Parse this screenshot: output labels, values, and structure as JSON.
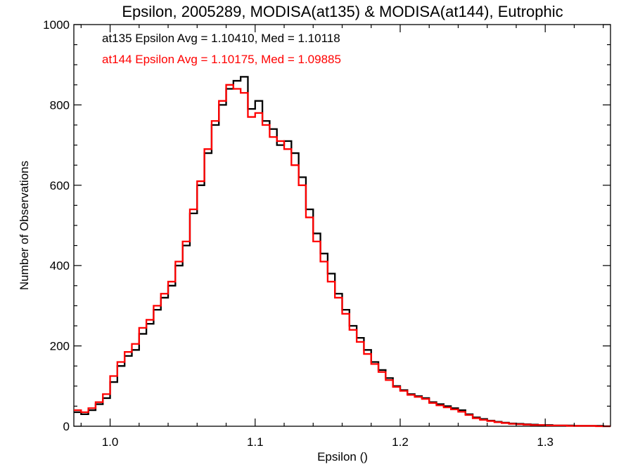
{
  "chart_data": {
    "type": "line",
    "step": true,
    "title": "Epsilon, 2005289, MODISA(at135) & MODISA(at144), Eutrophic",
    "xlabel": "Epsilon ()",
    "ylabel": "Number of Observations",
    "xlim": [
      0.975,
      1.345
    ],
    "ylim": [
      0,
      1000
    ],
    "xticks": [
      1.0,
      1.1,
      1.2,
      1.3
    ],
    "xtick_labels": [
      "1.0",
      "1.1",
      "1.2",
      "1.3"
    ],
    "yticks": [
      0,
      200,
      400,
      600,
      800,
      1000
    ],
    "ytick_labels": [
      "0",
      "200",
      "400",
      "600",
      "800",
      "1000"
    ],
    "grid": false,
    "legend": [
      {
        "text": "at135 Epsilon Avg = 1.10410, Med = 1.10118",
        "color": "#000000"
      },
      {
        "text": "at144 Epsilon Avg = 1.10175, Med = 1.09885",
        "color": "#ff0000"
      }
    ],
    "series": [
      {
        "color": "#000000",
        "x": [
          0.975,
          0.98,
          0.985,
          0.99,
          0.995,
          1.0,
          1.005,
          1.01,
          1.015,
          1.02,
          1.025,
          1.03,
          1.035,
          1.04,
          1.045,
          1.05,
          1.055,
          1.06,
          1.065,
          1.07,
          1.075,
          1.08,
          1.085,
          1.09,
          1.095,
          1.1,
          1.105,
          1.11,
          1.115,
          1.12,
          1.125,
          1.13,
          1.135,
          1.14,
          1.145,
          1.15,
          1.155,
          1.16,
          1.165,
          1.17,
          1.175,
          1.18,
          1.185,
          1.19,
          1.195,
          1.2,
          1.205,
          1.21,
          1.215,
          1.22,
          1.225,
          1.23,
          1.235,
          1.24,
          1.245,
          1.25,
          1.255,
          1.26,
          1.265,
          1.27,
          1.275,
          1.28,
          1.285,
          1.29,
          1.295,
          1.3,
          1.305,
          1.31,
          1.315,
          1.32,
          1.325,
          1.33,
          1.335,
          1.34,
          1.345
        ],
        "y": [
          35,
          30,
          40,
          55,
          70,
          110,
          150,
          175,
          190,
          230,
          255,
          290,
          320,
          350,
          400,
          450,
          530,
          600,
          680,
          750,
          800,
          840,
          860,
          870,
          790,
          810,
          760,
          740,
          700,
          710,
          680,
          620,
          540,
          480,
          430,
          380,
          330,
          290,
          250,
          220,
          190,
          160,
          140,
          120,
          100,
          90,
          80,
          75,
          70,
          60,
          55,
          50,
          45,
          40,
          30,
          22,
          18,
          14,
          11,
          9,
          7,
          6,
          5,
          4,
          3,
          3,
          2,
          2,
          2,
          1,
          1,
          1,
          1,
          0,
          0
        ]
      },
      {
        "color": "#ff0000",
        "x": [
          0.975,
          0.98,
          0.985,
          0.99,
          0.995,
          1.0,
          1.005,
          1.01,
          1.015,
          1.02,
          1.025,
          1.03,
          1.035,
          1.04,
          1.045,
          1.05,
          1.055,
          1.06,
          1.065,
          1.07,
          1.075,
          1.08,
          1.085,
          1.09,
          1.095,
          1.1,
          1.105,
          1.11,
          1.115,
          1.12,
          1.125,
          1.13,
          1.135,
          1.14,
          1.145,
          1.15,
          1.155,
          1.16,
          1.165,
          1.17,
          1.175,
          1.18,
          1.185,
          1.19,
          1.195,
          1.2,
          1.205,
          1.21,
          1.215,
          1.22,
          1.225,
          1.23,
          1.235,
          1.24,
          1.245,
          1.25,
          1.255,
          1.26,
          1.265,
          1.27,
          1.275,
          1.28,
          1.285,
          1.29,
          1.295,
          1.3,
          1.305,
          1.31,
          1.315,
          1.32,
          1.325,
          1.33,
          1.335,
          1.34,
          1.345
        ],
        "y": [
          40,
          35,
          45,
          60,
          80,
          125,
          160,
          185,
          205,
          245,
          265,
          300,
          330,
          360,
          410,
          460,
          540,
          610,
          690,
          760,
          810,
          850,
          840,
          830,
          770,
          780,
          750,
          720,
          710,
          690,
          650,
          600,
          520,
          460,
          410,
          360,
          320,
          280,
          240,
          210,
          180,
          155,
          135,
          115,
          98,
          88,
          78,
          73,
          68,
          58,
          52,
          47,
          42,
          36,
          28,
          20,
          16,
          13,
          10,
          8,
          6,
          5,
          4,
          3,
          3,
          2,
          2,
          2,
          1,
          1,
          1,
          1,
          0,
          0,
          0
        ]
      }
    ]
  }
}
